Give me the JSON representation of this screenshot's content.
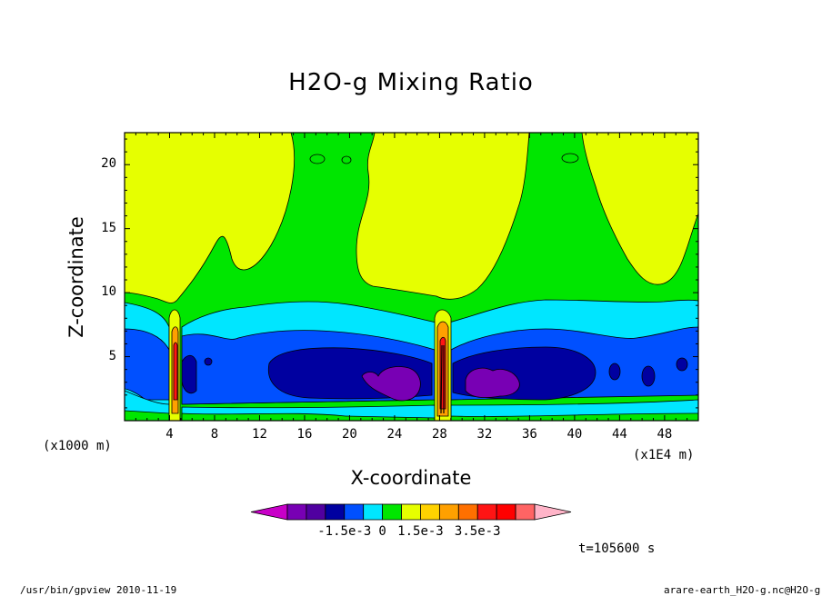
{
  "chart_data": {
    "type": "heatmap",
    "title": "H2O-g Mixing Ratio",
    "xlabel": "X-coordinate",
    "ylabel": "Z-coordinate",
    "x_unit_left": "(x1000 m)",
    "x_unit_right": "(x1E4 m)",
    "x_ticks": [
      "4",
      "8",
      "12",
      "16",
      "20",
      "24",
      "28",
      "32",
      "36",
      "40",
      "44",
      "48"
    ],
    "y_ticks": [
      "5",
      "10",
      "15",
      "20"
    ],
    "xlim": [
      0,
      51
    ],
    "ylim": [
      0,
      22.5
    ],
    "colorbar": {
      "colors": [
        "#c800c8",
        "#7800b4",
        "#5000a0",
        "#0000a0",
        "#0050ff",
        "#00e6ff",
        "#00e600",
        "#e6ff00",
        "#ffd200",
        "#ffa000",
        "#ff7000",
        "#ff1414",
        "#ff0000",
        "#ff6464",
        "#ffb4c8"
      ],
      "labels": [
        "-1.5e-3",
        "0",
        "1.5e-3",
        "3.5e-3"
      ]
    },
    "time_label": "t=105600 s"
  },
  "footer": {
    "left": "/usr/bin/gpview  2010-11-19",
    "right": "arare-earth_H2O-g.nc@H2O-g"
  }
}
